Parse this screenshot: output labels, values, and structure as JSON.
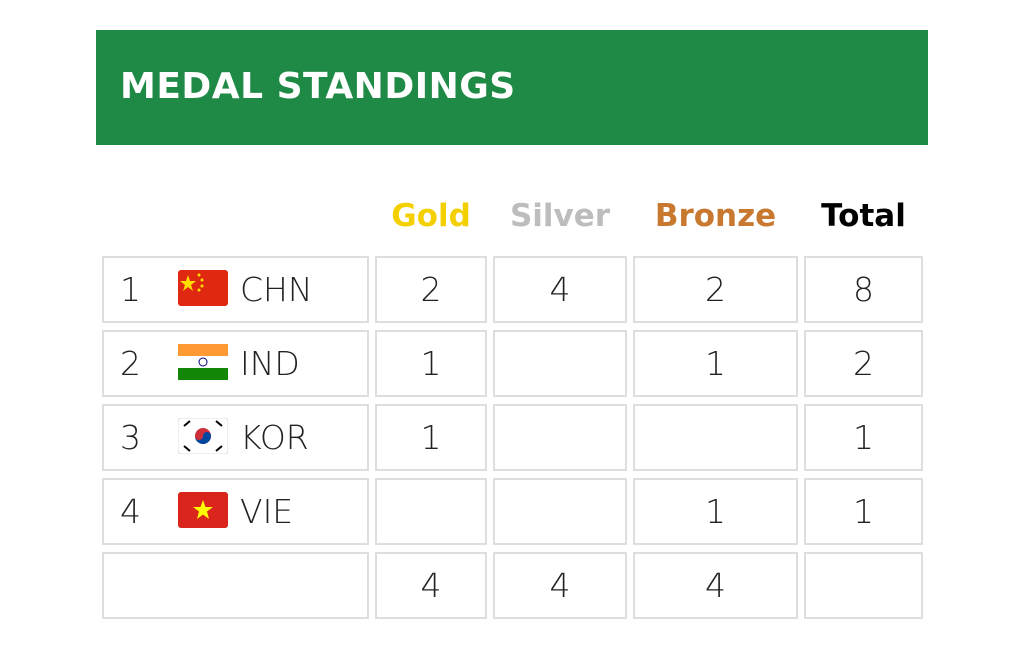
{
  "title": "MEDAL STANDINGS",
  "colors": {
    "banner": "#1e8a45",
    "gold": "#f5d000",
    "silver": "#bdbdbd",
    "bronze": "#c8782f",
    "total": "#000000"
  },
  "headers": [
    {
      "label": "Gold",
      "color": "#f5d000"
    },
    {
      "label": "Silver",
      "color": "#bdbdbd"
    },
    {
      "label": "Bronze",
      "color": "#c8782f"
    },
    {
      "label": "Total",
      "color": "#000000"
    }
  ],
  "rows": [
    {
      "rank": "1",
      "flag": "china-flag",
      "code": "CHN",
      "gold": "2",
      "silver": "4",
      "bronze": "2",
      "total": "8"
    },
    {
      "rank": "2",
      "flag": "india-flag",
      "code": "IND",
      "gold": "1",
      "silver": "",
      "bronze": "1",
      "total": "2"
    },
    {
      "rank": "3",
      "flag": "south-korea-flag",
      "code": "KOR",
      "gold": "1",
      "silver": "",
      "bronze": "",
      "total": "1"
    },
    {
      "rank": "4",
      "flag": "vietnam-flag",
      "code": "VIE",
      "gold": "",
      "silver": "",
      "bronze": "1",
      "total": "1"
    }
  ],
  "totals": {
    "gold": "4",
    "silver": "4",
    "bronze": "4",
    "total": ""
  }
}
